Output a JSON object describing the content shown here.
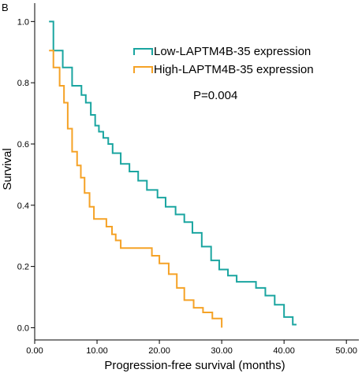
{
  "chart_data": {
    "type": "line",
    "panel_label": "B",
    "annotation": "P=0.004",
    "xlabel": "Progression-free survival (months)",
    "ylabel": "Survival",
    "xlim": [
      0,
      52
    ],
    "ylim": [
      -0.04,
      1.06
    ],
    "x_ticks": [
      0,
      10,
      20,
      30,
      40,
      50
    ],
    "x_tick_labels": [
      "0.00",
      "10.00",
      "20.00",
      "30.00",
      "40.00",
      "50.00"
    ],
    "y_ticks": [
      0.0,
      0.2,
      0.4,
      0.6,
      0.8,
      1.0
    ],
    "y_tick_labels": [
      "0.0",
      "0.2",
      "0.4",
      "0.6",
      "0.8",
      "1.0"
    ],
    "grid": false,
    "legend_position": "top-right",
    "series": [
      {
        "name": "Low-LAPTM4B-35 expression",
        "color": "#1aa5a0",
        "x": [
          2.3,
          3.0,
          4.5,
          6.0,
          7.5,
          8.2,
          9.0,
          9.7,
          10.3,
          11.0,
          11.8,
          12.5,
          13.8,
          15.2,
          16.6,
          18.0,
          19.7,
          21.0,
          22.6,
          24.0,
          25.3,
          26.8,
          28.3,
          29.6,
          31.0,
          32.4,
          34.0,
          35.5,
          37.0,
          38.5,
          40.0,
          41.4,
          42.0
        ],
        "y": [
          1.0,
          0.905,
          0.85,
          0.79,
          0.76,
          0.735,
          0.695,
          0.66,
          0.64,
          0.62,
          0.6,
          0.57,
          0.535,
          0.51,
          0.48,
          0.45,
          0.425,
          0.395,
          0.37,
          0.345,
          0.31,
          0.265,
          0.22,
          0.19,
          0.17,
          0.15,
          0.15,
          0.13,
          0.105,
          0.075,
          0.035,
          0.01,
          0.01
        ]
      },
      {
        "name": "High-LAPTM4B-35 expression",
        "color": "#f5a226",
        "x": [
          2.3,
          3.0,
          4.0,
          4.7,
          5.3,
          6.0,
          6.8,
          7.4,
          8.0,
          8.8,
          9.5,
          10.2,
          11.5,
          12.4,
          13.0,
          13.8,
          16.5,
          18.8,
          20.0,
          21.5,
          22.8,
          24.0,
          25.5,
          27.0,
          28.5,
          30.0
        ],
        "y": [
          0.905,
          0.85,
          0.79,
          0.735,
          0.65,
          0.575,
          0.53,
          0.49,
          0.44,
          0.395,
          0.355,
          0.355,
          0.33,
          0.305,
          0.285,
          0.26,
          0.26,
          0.235,
          0.21,
          0.175,
          0.13,
          0.09,
          0.065,
          0.05,
          0.03,
          0.0
        ]
      }
    ]
  }
}
